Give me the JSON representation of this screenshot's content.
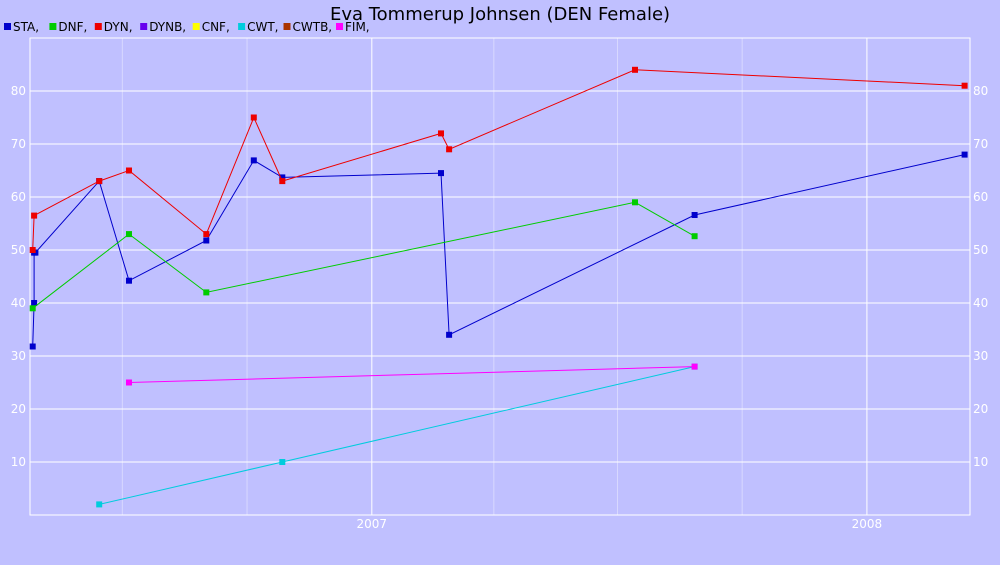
{
  "chart_data": {
    "type": "line",
    "title": "Eva Tommerup Johnsen (DEN Female)",
    "xlabel": "",
    "ylabel": "",
    "x_ticks": [
      "2007",
      "2008"
    ],
    "y_ticks": [
      10,
      20,
      30,
      40,
      50,
      60,
      70,
      80
    ],
    "xlim": [
      "2006-04-24",
      "2008-03-17"
    ],
    "ylim": [
      0,
      90
    ],
    "grid": true,
    "legend": "top-left",
    "legend_entries": [
      "STA,",
      "DNF,",
      "DYN,",
      "DYNB,",
      "CNF,",
      "CWT,",
      "CWTB,",
      "FIM,"
    ],
    "legend_colors": [
      "#0000cc",
      "#00cc00",
      "#ee0000",
      "#6600ee",
      "#ffff00",
      "#00ccdd",
      "#aa3300",
      "#ff00ff"
    ],
    "series": [
      {
        "name": "STA,",
        "color": "#0000cc",
        "points": [
          {
            "x": "2006-04-26",
            "y": 31.8
          },
          {
            "x": "2006-04-27",
            "y": 40
          },
          {
            "x": "2006-04-27",
            "y": 49.5
          },
          {
            "x": "2006-04-28",
            "y": 49.5
          },
          {
            "x": "2006-06-14",
            "y": 63
          },
          {
            "x": "2006-07-06",
            "y": 44.2
          },
          {
            "x": "2006-09-01",
            "y": 51.8
          },
          {
            "x": "2006-10-06",
            "y": 66.9
          },
          {
            "x": "2006-10-27",
            "y": 63.7
          },
          {
            "x": "2007-02-21",
            "y": 64.5
          },
          {
            "x": "2007-02-27",
            "y": 34
          },
          {
            "x": "2007-08-27",
            "y": 56.6
          },
          {
            "x": "2008-03-13",
            "y": 68
          }
        ]
      },
      {
        "name": "DNF,",
        "color": "#00cc00",
        "points": [
          {
            "x": "2006-04-26",
            "y": 39
          },
          {
            "x": "2006-07-06",
            "y": 53
          },
          {
            "x": "2006-09-01",
            "y": 42
          },
          {
            "x": "2007-07-14",
            "y": 59
          },
          {
            "x": "2007-08-27",
            "y": 52.6
          }
        ]
      },
      {
        "name": "DYN,",
        "color": "#ee0000",
        "points": [
          {
            "x": "2006-04-26",
            "y": 50
          },
          {
            "x": "2006-04-27",
            "y": 56.5
          },
          {
            "x": "2006-06-14",
            "y": 63
          },
          {
            "x": "2006-07-06",
            "y": 65
          },
          {
            "x": "2006-09-01",
            "y": 53
          },
          {
            "x": "2006-10-06",
            "y": 75
          },
          {
            "x": "2006-10-27",
            "y": 63
          },
          {
            "x": "2007-02-21",
            "y": 72
          },
          {
            "x": "2007-02-27",
            "y": 69
          },
          {
            "x": "2007-07-14",
            "y": 84
          },
          {
            "x": "2008-03-13",
            "y": 81
          }
        ]
      },
      {
        "name": "CWT,",
        "color": "#00ccdd",
        "points": [
          {
            "x": "2006-06-14",
            "y": 2
          },
          {
            "x": "2006-10-27",
            "y": 10
          },
          {
            "x": "2007-08-27",
            "y": 28
          }
        ]
      },
      {
        "name": "FIM,",
        "color": "#ff00ff",
        "points": [
          {
            "x": "2006-07-06",
            "y": 25
          },
          {
            "x": "2007-08-27",
            "y": 28
          }
        ]
      }
    ]
  }
}
